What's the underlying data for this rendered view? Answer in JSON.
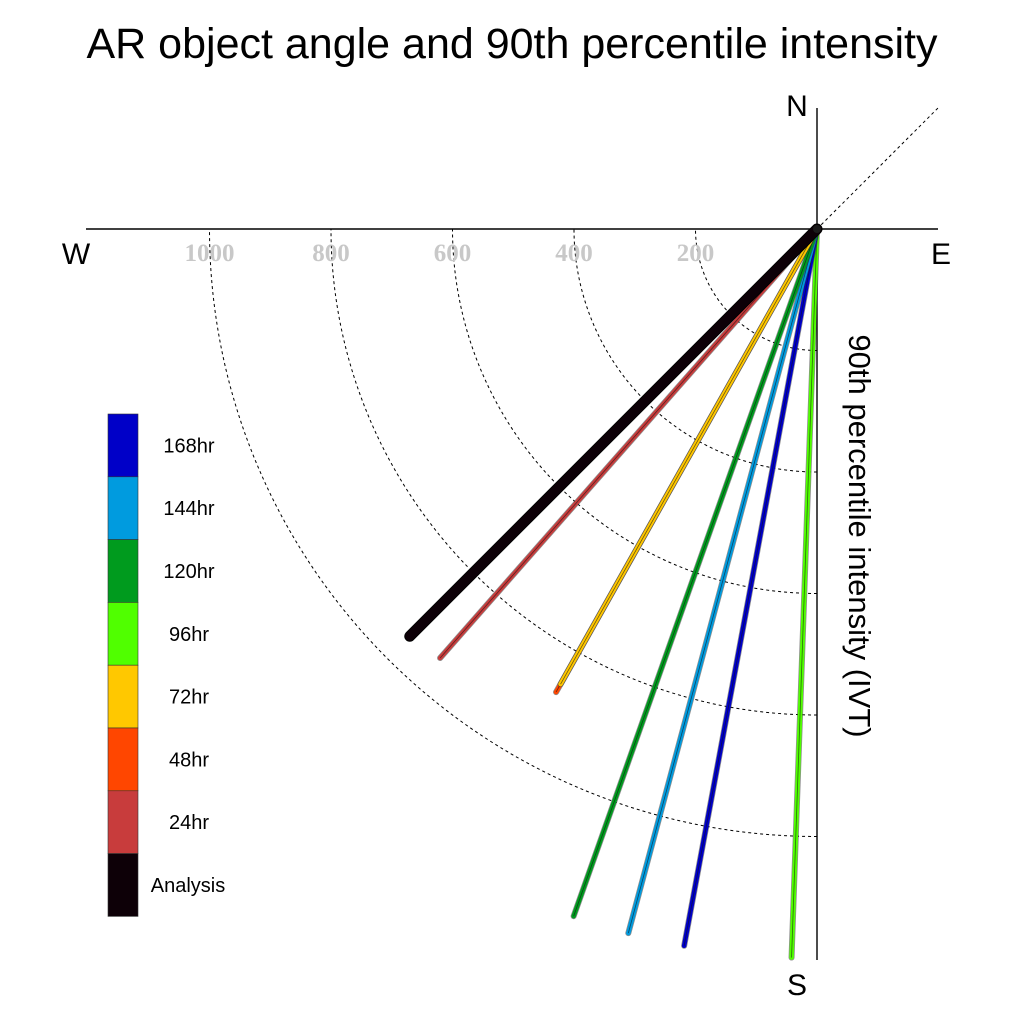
{
  "chart_data": {
    "type": "polar-line",
    "title": "AR object angle and 90th percentile intensity",
    "radial_axis_label": "90th percentile intensity (IVT)",
    "compass": {
      "north": "N",
      "south": "S",
      "west": "W",
      "east": "E"
    },
    "radial_ticks": [
      {
        "value": 200,
        "label": "200"
      },
      {
        "value": 400,
        "label": "400"
      },
      {
        "value": 600,
        "label": "600"
      },
      {
        "value": 800,
        "label": "800"
      },
      {
        "value": 1000,
        "label": "1000"
      }
    ],
    "radial_range": [
      0,
      1200
    ],
    "legend_placement": "left",
    "legend": [
      {
        "label": "168hr",
        "color": "#0000c8"
      },
      {
        "label": "144hr",
        "color": "#009bdf"
      },
      {
        "label": "120hr",
        "color": "#009b1e"
      },
      {
        "label": "96hr",
        "color": "#50ff00"
      },
      {
        "label": "72hr",
        "color": "#ffc800"
      },
      {
        "label": "48hr",
        "color": "#ff4600"
      },
      {
        "label": "24hr",
        "color": "#c83c3c"
      },
      {
        "label": "Analysis",
        "color": "#0d0007"
      }
    ],
    "series": [
      {
        "name": "Analysis",
        "angle_deg": 225.0,
        "intensity": 948,
        "color": "#0d0007"
      },
      {
        "name": "24hr",
        "angle_deg": 221.3,
        "intensity": 940,
        "color": "#c83c3c"
      },
      {
        "name": "48hr",
        "angle_deg": 209.4,
        "intensity": 875,
        "color": "#ff4600"
      },
      {
        "name": "72hr",
        "angle_deg": 209.4,
        "intensity": 860,
        "color": "#ffc800"
      },
      {
        "name": "96hr",
        "angle_deg": 182.0,
        "intensity": 1200,
        "color": "#50ff00"
      },
      {
        "name": "120hr",
        "angle_deg": 199.5,
        "intensity": 1200,
        "color": "#009b1e"
      },
      {
        "name": "144hr",
        "angle_deg": 195.0,
        "intensity": 1200,
        "color": "#009bdf"
      },
      {
        "name": "168hr",
        "angle_deg": 190.5,
        "intensity": 1200,
        "color": "#0000c8"
      }
    ],
    "reference_line_angle_deg": 45
  }
}
